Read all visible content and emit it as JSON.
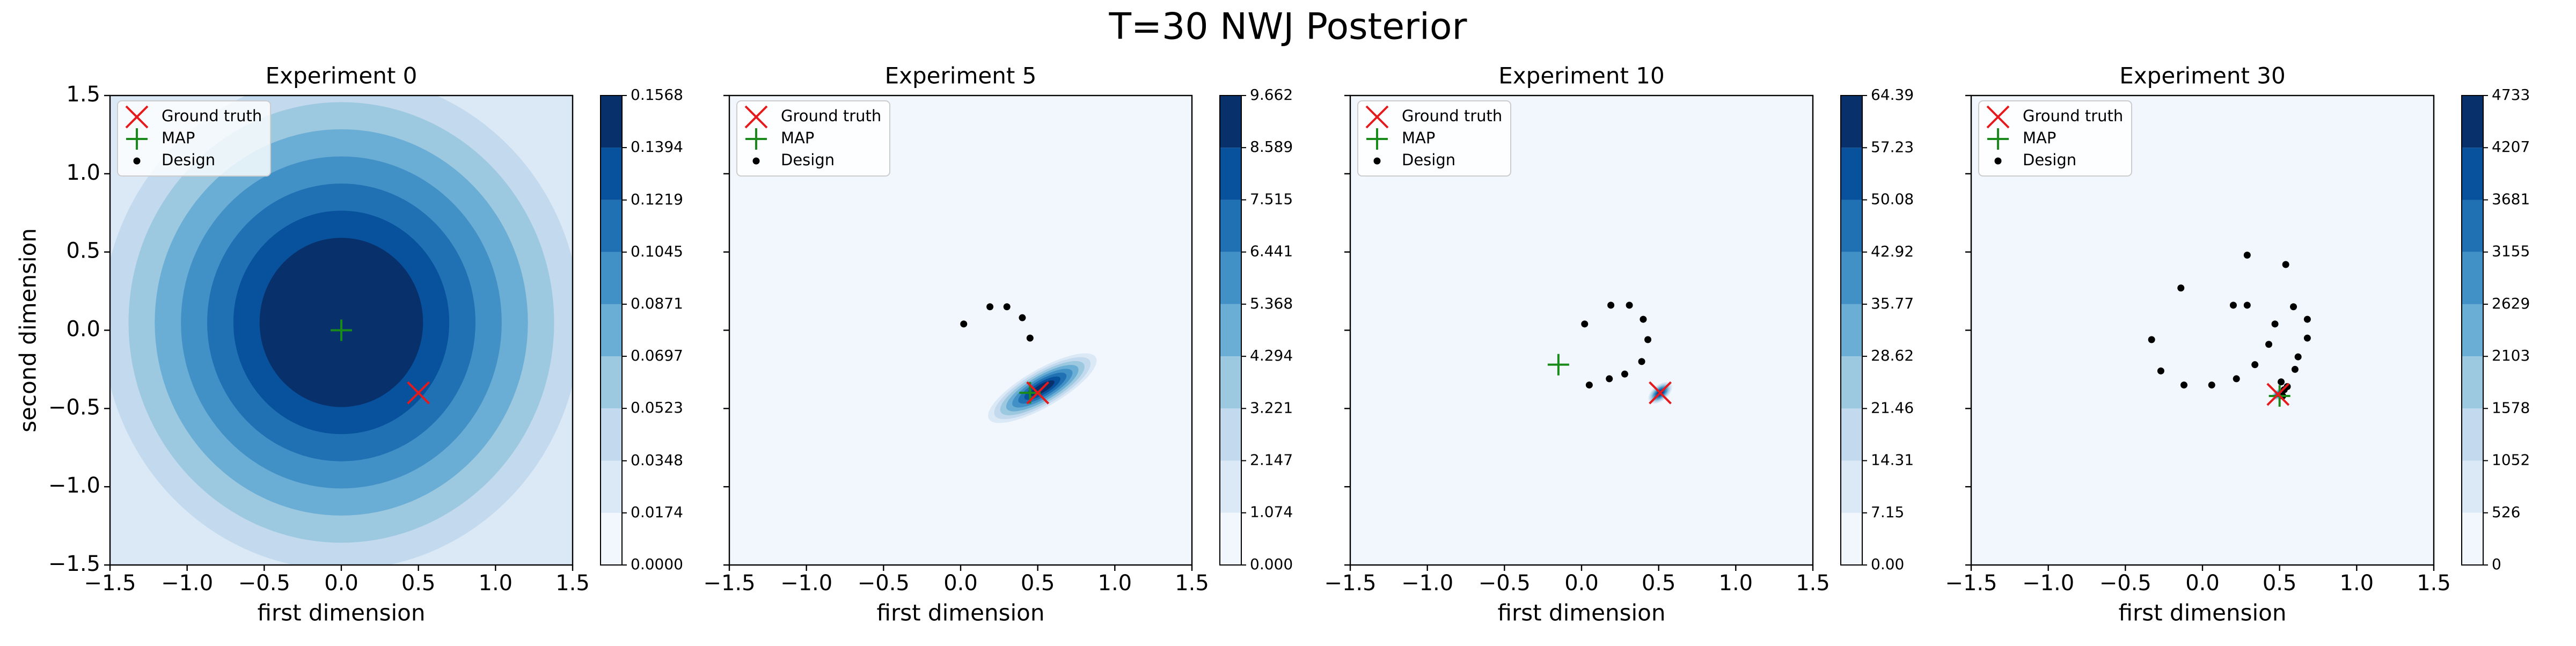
{
  "title": "T=30 NWJ Posterior",
  "colormap": [
    "#f1f7fd",
    "#dbe9f6",
    "#c2d9ee",
    "#9dc9e0",
    "#6aadd5",
    "#4191c6",
    "#2070b4",
    "#08519c",
    "#08306b"
  ],
  "chart_data": [
    {
      "type": "contour",
      "title": "Experiment 0",
      "xlabel": "first dimension",
      "ylabel": "second dimension",
      "xlim": [
        -1.5,
        1.5
      ],
      "ylim": [
        -1.5,
        1.5
      ],
      "xticks": [
        {
          "value": -1.5,
          "label": "−1.5"
        },
        {
          "value": -1.0,
          "label": "−1.0"
        },
        {
          "value": -0.5,
          "label": "−0.5"
        },
        {
          "value": 0,
          "label": "0.0"
        },
        0.5,
        {
          "value": 1.0,
          "label": "1.0"
        },
        1.5
      ],
      "yticks": [
        {
          "value": -1.5,
          "label": "−1.5"
        },
        {
          "value": -1.0,
          "label": "−1.0"
        },
        {
          "value": -0.5,
          "label": "−0.5"
        },
        {
          "value": 0,
          "label": "0.0"
        },
        0.5,
        {
          "value": 1.0,
          "label": "1.0"
        },
        1.5
      ],
      "colorbar_ticks": [
        {
          "value": 0,
          "label": "0.0000"
        },
        0.0174,
        0.0348,
        0.0523,
        0.0697,
        0.0871,
        0.1045,
        0.1219,
        0.1394,
        0.1568
      ],
      "series": [
        {
          "name": "Ground truth",
          "color": "#e41a1c",
          "marker": "x",
          "x": [
            0.5
          ],
          "y": [
            -0.4
          ]
        },
        {
          "name": "MAP",
          "color": "#1a8a1a",
          "marker": "plus",
          "x": [
            0.0
          ],
          "y": [
            0.0
          ]
        },
        {
          "name": "Design",
          "color": "#000000",
          "marker": "dot",
          "x": [],
          "y": []
        }
      ]
    },
    {
      "type": "contour",
      "title": "Experiment 5",
      "xlabel": "first dimension",
      "sharey": true,
      "xlim": [
        -1.5,
        1.5
      ],
      "ylim": [
        -1.5,
        1.5
      ],
      "xticks": [
        {
          "value": -1.5,
          "label": "−1.5"
        },
        {
          "value": -1.0,
          "label": "−1.0"
        },
        {
          "value": -0.5,
          "label": "−0.5"
        },
        {
          "value": 0,
          "label": "0.0"
        },
        0.5,
        {
          "value": 1.0,
          "label": "1.0"
        },
        1.5
      ],
      "yticks": [
        -1.5,
        -1.0,
        -0.5,
        0,
        0.5,
        1.0,
        1.5
      ],
      "colorbar_ticks": [
        {
          "value": 0,
          "label": "0.000"
        },
        1.074,
        2.147,
        3.221,
        4.294,
        5.368,
        6.441,
        7.515,
        8.589,
        9.662
      ],
      "series": [
        {
          "name": "Ground truth",
          "color": "#e41a1c",
          "marker": "x",
          "x": [
            0.5
          ],
          "y": [
            -0.4
          ]
        },
        {
          "name": "MAP",
          "color": "#1a8a1a",
          "marker": "plus",
          "x": [
            0.45
          ],
          "y": [
            -0.4
          ]
        },
        {
          "name": "Design",
          "color": "#000000",
          "marker": "dot",
          "x": [
            0.02,
            0.19,
            0.3,
            0.4,
            0.45
          ],
          "y": [
            0.04,
            0.15,
            0.15,
            0.08,
            -0.05
          ]
        }
      ]
    },
    {
      "type": "contour",
      "title": "Experiment 10",
      "xlabel": "first dimension",
      "sharey": true,
      "xlim": [
        -1.5,
        1.5
      ],
      "ylim": [
        -1.5,
        1.5
      ],
      "xticks": [
        {
          "value": -1.5,
          "label": "−1.5"
        },
        {
          "value": -1.0,
          "label": "−1.0"
        },
        {
          "value": -0.5,
          "label": "−0.5"
        },
        {
          "value": 0,
          "label": "0.0"
        },
        0.5,
        {
          "value": 1.0,
          "label": "1.0"
        },
        1.5
      ],
      "yticks": [
        -1.5,
        -1.0,
        -0.5,
        0,
        0.5,
        1.0,
        1.5
      ],
      "colorbar_ticks": [
        {
          "value": 0,
          "label": "0.00"
        },
        7.15,
        14.31,
        21.46,
        28.62,
        35.77,
        42.92,
        50.08,
        57.23,
        64.39
      ],
      "series": [
        {
          "name": "Ground truth",
          "color": "#e41a1c",
          "marker": "x",
          "x": [
            0.51
          ],
          "y": [
            -0.4
          ]
        },
        {
          "name": "MAP",
          "color": "#1a8a1a",
          "marker": "plus",
          "x": [
            -0.15
          ],
          "y": [
            -0.22
          ]
        },
        {
          "name": "Design",
          "color": "#000000",
          "marker": "dot",
          "x": [
            0.02,
            0.19,
            0.31,
            0.4,
            0.43,
            0.39,
            0.28,
            0.18,
            0.05
          ],
          "y": [
            0.04,
            0.16,
            0.16,
            0.07,
            -0.06,
            -0.2,
            -0.28,
            -0.31,
            -0.35
          ]
        }
      ]
    },
    {
      "type": "contour",
      "title": "Experiment 30",
      "xlabel": "first dimension",
      "sharey": true,
      "xlim": [
        -1.5,
        1.5
      ],
      "ylim": [
        -1.5,
        1.5
      ],
      "xticks": [
        {
          "value": -1.5,
          "label": "−1.5"
        },
        {
          "value": -1.0,
          "label": "−1.0"
        },
        {
          "value": -0.5,
          "label": "−0.5"
        },
        {
          "value": 0,
          "label": "0.0"
        },
        0.5,
        {
          "value": 1.0,
          "label": "1.0"
        },
        1.5
      ],
      "yticks": [
        -1.5,
        -1.0,
        -0.5,
        0,
        0.5,
        1.0,
        1.5
      ],
      "colorbar_ticks": [
        0,
        526,
        1052,
        1578,
        2103,
        2629,
        3155,
        3681,
        4207,
        4733
      ],
      "series": [
        {
          "name": "Ground truth",
          "color": "#e41a1c",
          "marker": "x",
          "x": [
            0.49
          ],
          "y": [
            -0.41
          ]
        },
        {
          "name": "MAP",
          "color": "#1a8a1a",
          "marker": "plus",
          "x": [
            0.5
          ],
          "y": [
            -0.42
          ]
        },
        {
          "name": "Design",
          "color": "#000000",
          "marker": "dot",
          "x": [
            -0.33,
            -0.27,
            -0.14,
            -0.12,
            0.06,
            0.2,
            0.29,
            0.22,
            0.29,
            0.34,
            0.43,
            0.47,
            0.54,
            0.59,
            0.68,
            0.68,
            0.62,
            0.6,
            0.51,
            0.53,
            0.55,
            0.52
          ],
          "y": [
            -0.06,
            -0.26,
            0.27,
            -0.35,
            -0.35,
            0.16,
            0.16,
            -0.31,
            0.48,
            -0.22,
            -0.09,
            0.04,
            0.42,
            0.15,
            0.07,
            -0.05,
            -0.17,
            -0.25,
            -0.33,
            -0.38,
            -0.36,
            -0.42
          ]
        }
      ]
    }
  ]
}
